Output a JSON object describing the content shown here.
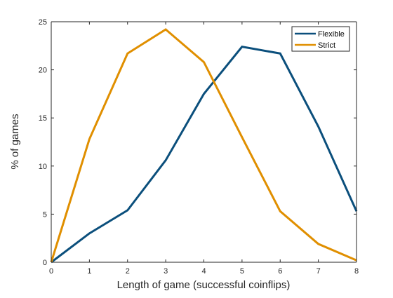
{
  "chart_data": {
    "type": "line",
    "title": "",
    "xlabel": "Length of game (successful coinflips)",
    "ylabel": "% of games",
    "x": [
      0,
      1,
      2,
      3,
      4,
      5,
      6,
      7,
      8
    ],
    "xlim": [
      0,
      8
    ],
    "ylim": [
      0,
      25
    ],
    "xticks": [
      0,
      1,
      2,
      3,
      4,
      5,
      6,
      7,
      8
    ],
    "yticks": [
      0,
      5,
      10,
      15,
      20,
      25
    ],
    "grid": false,
    "legend_position": "top-right",
    "series": [
      {
        "name": "Flexible",
        "color": "#0b4f7c",
        "values": [
          0,
          3.0,
          5.4,
          10.6,
          17.5,
          22.4,
          21.7,
          14.1,
          5.3
        ]
      },
      {
        "name": "Strict",
        "color": "#e08f00",
        "values": [
          0,
          12.8,
          21.7,
          24.2,
          20.8,
          13.0,
          5.3,
          1.9,
          0.2
        ]
      }
    ]
  }
}
